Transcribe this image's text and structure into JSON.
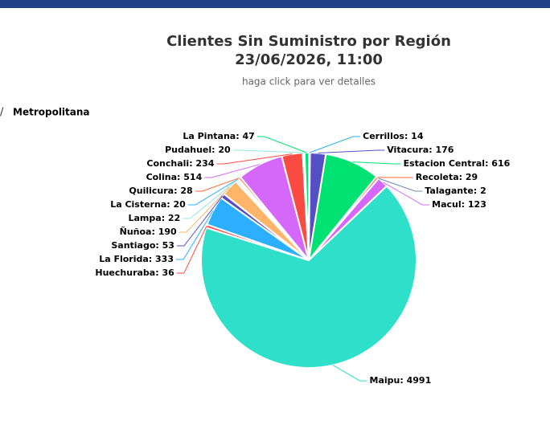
{
  "breadcrumb": {
    "separator": "/",
    "label": "Metropolitana"
  },
  "chart_data": {
    "type": "pie",
    "title": "Clientes Sin Suministro por Región",
    "subtitle_date": "23/06/2026, 11:00",
    "subtitle": "haga click para ver detalles",
    "categories": [
      "Cerrillos",
      "Vitacura",
      "Estacion Central",
      "Recoleta",
      "Talagante",
      "Macul",
      "Maipu",
      "Huechuraba",
      "La Florida",
      "Santiago",
      "Ñuñoa",
      "Lampa",
      "La Cisterna",
      "Quilicura",
      "Colina",
      "Conchali",
      "Pudahuel",
      "La Pintana"
    ],
    "values": [
      14,
      176,
      616,
      29,
      2,
      123,
      4991,
      36,
      333,
      53,
      190,
      22,
      20,
      28,
      514,
      234,
      20,
      47
    ],
    "value_labels": [
      ": 14",
      ": 176",
      ": 616",
      ": 29",
      ": 2",
      ": 123",
      ": 4991",
      ": 36",
      ": 333",
      ": 53",
      ": 190",
      ": 22",
      ": 20",
      ": 28",
      ": 514",
      ": 234",
      ": 20",
      ": 47"
    ],
    "colors": [
      "#2caffe",
      "#544fc5",
      "#00e272",
      "#fe6a35",
      "#6b8abc",
      "#d568fb",
      "#2ee0ca",
      "#fa4b42",
      "#2caffe",
      "#544fc5",
      "#feb56a",
      "#91e8e1",
      "#2caffe",
      "#fe6a35",
      "#d568fb",
      "#fa4b42",
      "#91e8e1",
      "#00e272"
    ]
  }
}
